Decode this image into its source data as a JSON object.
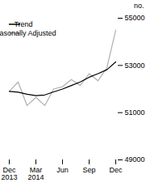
{
  "chart_data": {
    "type": "line",
    "ylabel": "no.",
    "categories": [
      "Dec\n2013",
      null,
      null,
      "Mar\n2014",
      null,
      null,
      "Jun",
      null,
      null,
      "Sep",
      null,
      null,
      "Dec"
    ],
    "series": [
      {
        "name": "Trend",
        "color": "#000000",
        "values": [
          51900,
          51870,
          51780,
          51720,
          51750,
          51880,
          52000,
          52150,
          52300,
          52500,
          52650,
          52820,
          53150
        ]
      },
      {
        "name": "Seasonally Adjusted",
        "color": "#b0b0b0",
        "values": [
          51900,
          52300,
          51300,
          51650,
          51300,
          52000,
          52100,
          52400,
          52150,
          52650,
          52350,
          52900,
          54500
        ]
      }
    ],
    "ylim": [
      49000,
      55000
    ],
    "yticks": [
      49000,
      51000,
      53000,
      55000
    ],
    "legend": "upper left"
  }
}
